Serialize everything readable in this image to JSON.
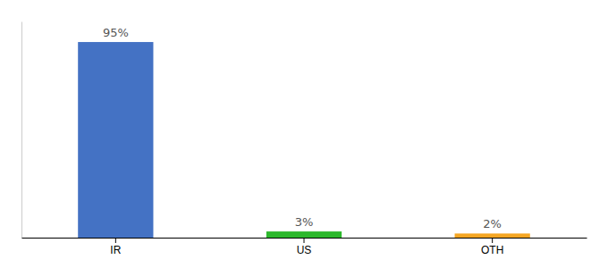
{
  "chart_data": {
    "type": "bar",
    "categories": [
      "IR",
      "US",
      "OTH"
    ],
    "values": [
      95,
      3,
      2
    ],
    "value_labels": [
      "95%",
      "3%",
      "2%"
    ],
    "data_labels": true,
    "colors": [
      "#4472c4",
      "#2db82d",
      "#f5a623"
    ],
    "ylim": [
      0,
      105
    ],
    "tick_labels": "x",
    "grid": false
  }
}
